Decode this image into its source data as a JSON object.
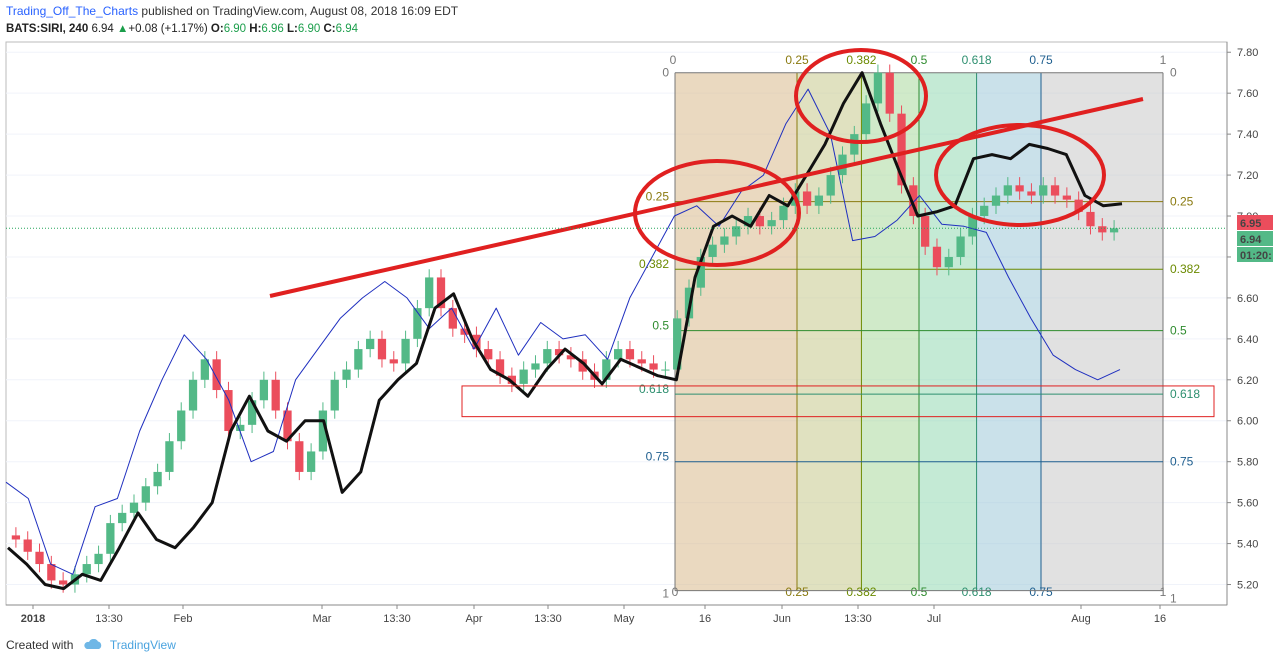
{
  "header": {
    "author": "Trading_Off_The_Charts",
    "published": "published on TradingView.com, August 08, 2018 16:09 EDT",
    "symbol": "BATS:SIRI, 240",
    "last": "6.94",
    "change": "+0.08 (+1.17%)",
    "o_label": "O:",
    "o": "6.90",
    "h_label": "H:",
    "h": "6.96",
    "l_label": "L:",
    "l": "6.90",
    "c_label": "C:",
    "c": "6.94"
  },
  "footer": {
    "created": "Created with",
    "brand": "TradingView"
  },
  "colors": {
    "up": "#53b987",
    "down": "#eb4d5c",
    "trend": "#e02020",
    "black_line": "#111111",
    "blue_line": "#1f2fbf"
  },
  "chart_data": {
    "type": "line",
    "title": "",
    "xlabel": "",
    "ylabel": "",
    "ylim": [
      5.1,
      7.85
    ],
    "y_ticks": [
      "5.20",
      "5.40",
      "5.60",
      "5.80",
      "6.00",
      "6.20",
      "6.40",
      "6.60",
      "6.80",
      "7.00",
      "7.20",
      "7.40",
      "7.60",
      "7.80"
    ],
    "x_ticks": [
      "2018",
      "13:30",
      "Feb",
      "Mar",
      "13:30",
      "Apr",
      "13:30",
      "May",
      "16",
      "Jun",
      "13:30",
      "Jul",
      "Aug",
      "16"
    ],
    "price_labels": [
      {
        "value": 6.95,
        "text": "6.95",
        "color": "#eb4d5c"
      },
      {
        "value": 6.94,
        "text": "6.94",
        "color": "#53b987"
      },
      {
        "value": 6.86,
        "text": "01:20:",
        "color": "#53b987"
      }
    ],
    "fib_h_levels": [
      {
        "label": "0",
        "price": 7.7,
        "color": "#777777"
      },
      {
        "label": "0.25",
        "price": 7.07,
        "color": "#8a7a10"
      },
      {
        "label": "0.382",
        "price": 6.74,
        "color": "#6b8a00"
      },
      {
        "label": "0.5",
        "price": 6.44,
        "color": "#2e8b2e"
      },
      {
        "label": "0.618",
        "price": 6.13,
        "color": "#2d8f6f"
      },
      {
        "label": "0.75",
        "price": 5.8,
        "color": "#1f5f8f"
      },
      {
        "label": "1",
        "price": 5.17,
        "color": "#777777"
      }
    ],
    "fib_v_levels": [
      "0",
      "0.25",
      "0.382",
      "0.5",
      "0.618",
      "0.75",
      "1"
    ],
    "candles_close": [
      5.42,
      5.36,
      5.3,
      5.22,
      5.2,
      5.25,
      5.3,
      5.35,
      5.5,
      5.55,
      5.6,
      5.68,
      5.75,
      5.9,
      6.05,
      6.2,
      6.3,
      6.15,
      5.95,
      5.98,
      6.1,
      6.2,
      6.05,
      5.9,
      5.75,
      5.85,
      6.05,
      6.2,
      6.25,
      6.35,
      6.4,
      6.3,
      6.28,
      6.4,
      6.55,
      6.7,
      6.55,
      6.45,
      6.42,
      6.35,
      6.3,
      6.22,
      6.18,
      6.25,
      6.28,
      6.35,
      6.32,
      6.3,
      6.24,
      6.2,
      6.3,
      6.35,
      6.3,
      6.28,
      6.25,
      6.25,
      6.5,
      6.65,
      6.8,
      6.86,
      6.9,
      6.95,
      7.0,
      6.95,
      6.98,
      7.05,
      7.12,
      7.05,
      7.1,
      7.2,
      7.3,
      7.4,
      7.55,
      7.7,
      7.5,
      7.15,
      7.0,
      6.85,
      6.75,
      6.8,
      6.9,
      7.0,
      7.05,
      7.1,
      7.15,
      7.12,
      7.1,
      7.15,
      7.1,
      7.08,
      7.02,
      6.95,
      6.92,
      6.94
    ],
    "black_line": [
      5.38,
      5.3,
      5.2,
      5.18,
      5.25,
      5.22,
      5.38,
      5.55,
      5.42,
      5.38,
      5.48,
      5.6,
      5.95,
      6.12,
      5.95,
      5.9,
      6.0,
      6.0,
      5.65,
      5.75,
      6.1,
      6.2,
      6.28,
      6.55,
      6.62,
      6.4,
      6.25,
      6.2,
      6.12,
      6.25,
      6.35,
      6.28,
      6.18,
      6.3,
      6.26,
      6.22,
      6.2,
      6.7,
      6.95,
      7.0,
      6.95,
      7.1,
      7.05,
      7.2,
      7.35,
      7.55,
      7.7,
      7.45,
      7.22,
      7.0,
      7.02,
      7.05,
      7.28,
      7.3,
      7.28,
      7.35,
      7.33,
      7.3,
      7.1,
      7.05,
      7.06
    ],
    "blue_line": [
      5.7,
      5.62,
      5.3,
      5.25,
      5.58,
      5.62,
      5.95,
      6.2,
      6.42,
      6.3,
      6.1,
      5.8,
      5.85,
      6.2,
      6.35,
      6.5,
      6.6,
      6.68,
      6.6,
      6.45,
      6.55,
      6.35,
      6.55,
      6.32,
      6.48,
      6.4,
      6.42,
      6.3,
      6.6,
      6.8,
      7.0,
      7.05,
      6.95,
      7.12,
      7.2,
      7.45,
      7.62,
      7.4,
      6.88,
      6.9,
      6.98,
      7.1,
      6.96,
      6.95,
      6.92,
      6.7,
      6.5,
      6.32,
      6.25,
      6.2,
      6.25
    ]
  }
}
